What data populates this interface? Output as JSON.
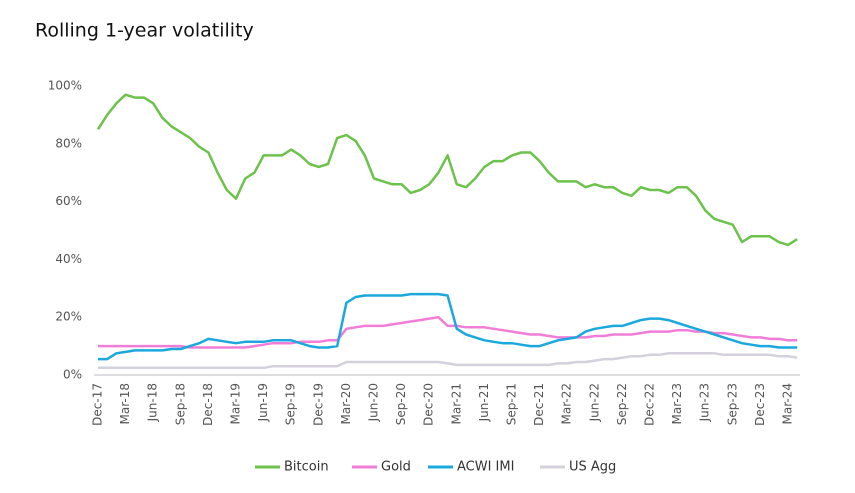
{
  "chart_data": {
    "type": "line",
    "title": "Rolling 1-year volatility",
    "categories": [
      "Dec-17",
      null,
      null,
      "Mar-18",
      null,
      null,
      "Jun-18",
      null,
      null,
      "Sep-18",
      null,
      null,
      "Dec-18",
      null,
      null,
      "Mar-19",
      null,
      null,
      "Jun-19",
      null,
      null,
      "Sep-19",
      null,
      null,
      "Dec-19",
      null,
      null,
      "Mar-20",
      null,
      null,
      "Jun-20",
      null,
      null,
      "Sep-20",
      null,
      null,
      "Dec-20",
      null,
      null,
      "Mar-21",
      null,
      null,
      "Jun-21",
      null,
      null,
      "Sep-21",
      null,
      null,
      "Dec-21",
      null,
      null,
      "Mar-22",
      null,
      null,
      "Jun-22",
      null,
      null,
      "Sep-22",
      null,
      null,
      "Dec-22",
      null,
      null,
      "Mar-23",
      null,
      null,
      "Jun-23",
      null,
      null,
      "Sep-23",
      null,
      null,
      "Dec-23",
      null,
      null,
      "Mar-24",
      null
    ],
    "series": [
      {
        "name": "Bitcoin",
        "color": "#6cc24a",
        "values": [
          85,
          90,
          94,
          97,
          96,
          96,
          94,
          89,
          86,
          84,
          82,
          79,
          77,
          70,
          64,
          61,
          68,
          70,
          76,
          76,
          76,
          78,
          76,
          73,
          72,
          73,
          82,
          83,
          81,
          76,
          68,
          67,
          66,
          66,
          63,
          64,
          66,
          70,
          76,
          66,
          65,
          68,
          72,
          74,
          74,
          76,
          77,
          77,
          74,
          70,
          67,
          67,
          67,
          65,
          66,
          65,
          65,
          63,
          62,
          65,
          64,
          64,
          63,
          65,
          65,
          62,
          57,
          54,
          53,
          52,
          46,
          48,
          48,
          48,
          46,
          45,
          47
        ]
      },
      {
        "name": "Gold",
        "color": "#f07ed8",
        "values": [
          10,
          10,
          10,
          10,
          10,
          10,
          10,
          10,
          10,
          10,
          9.5,
          9.5,
          9.5,
          9.5,
          9.5,
          9.5,
          9.5,
          10,
          10.5,
          11,
          11,
          11,
          11.5,
          11.5,
          11.5,
          12,
          12,
          16,
          16.5,
          17,
          17,
          17,
          17.5,
          18,
          18.5,
          19,
          19.5,
          20,
          17,
          17,
          16.5,
          16.5,
          16.5,
          16,
          15.5,
          15,
          14.5,
          14,
          14,
          13.5,
          13,
          13,
          13,
          13,
          13.5,
          13.5,
          14,
          14,
          14,
          14.5,
          15,
          15,
          15,
          15.5,
          15.5,
          15,
          15,
          14.5,
          14.5,
          14,
          13.5,
          13,
          13,
          12.5,
          12.5,
          12,
          12
        ]
      },
      {
        "name": "ACWI IMI",
        "color": "#1ba8de",
        "values": [
          5.5,
          5.5,
          7.5,
          8,
          8.5,
          8.5,
          8.5,
          8.5,
          9,
          9,
          10,
          11,
          12.5,
          12,
          11.5,
          11,
          11.5,
          11.5,
          11.5,
          12,
          12,
          12,
          11,
          10,
          9.5,
          9.5,
          10,
          25,
          27,
          27.5,
          27.5,
          27.5,
          27.5,
          27.5,
          28,
          28,
          28,
          28,
          27.5,
          16,
          14,
          13,
          12,
          11.5,
          11,
          11,
          10.5,
          10,
          10,
          11,
          12,
          12.5,
          13,
          15,
          16,
          16.5,
          17,
          17,
          18,
          19,
          19.5,
          19.5,
          19,
          18,
          17,
          16,
          15,
          14,
          13,
          12,
          11,
          10.5,
          10,
          10,
          9.5,
          9.5,
          9.5
        ]
      },
      {
        "name": "US Agg",
        "color": "#d4d0dc",
        "values": [
          2.5,
          2.5,
          2.5,
          2.5,
          2.5,
          2.5,
          2.5,
          2.5,
          2.5,
          2.5,
          2.5,
          2.5,
          2.5,
          2.5,
          2.5,
          2.5,
          2.5,
          2.5,
          2.5,
          3,
          3,
          3,
          3,
          3,
          3,
          3,
          3,
          4.5,
          4.5,
          4.5,
          4.5,
          4.5,
          4.5,
          4.5,
          4.5,
          4.5,
          4.5,
          4.5,
          4,
          3.5,
          3.5,
          3.5,
          3.5,
          3.5,
          3.5,
          3.5,
          3.5,
          3.5,
          3.5,
          3.5,
          4,
          4,
          4.5,
          4.5,
          5,
          5.5,
          5.5,
          6,
          6.5,
          6.5,
          7,
          7,
          7.5,
          7.5,
          7.5,
          7.5,
          7.5,
          7.5,
          7,
          7,
          7,
          7,
          7,
          7,
          6.5,
          6.5,
          6
        ]
      }
    ],
    "ylim": [
      0,
      100
    ],
    "yticks": [
      {
        "value": 0,
        "label": "0%"
      },
      {
        "value": 20,
        "label": "20%"
      },
      {
        "value": 40,
        "label": "40%"
      },
      {
        "value": 60,
        "label": "60%"
      },
      {
        "value": 80,
        "label": "80%"
      },
      {
        "value": 100,
        "label": "100%"
      }
    ]
  }
}
